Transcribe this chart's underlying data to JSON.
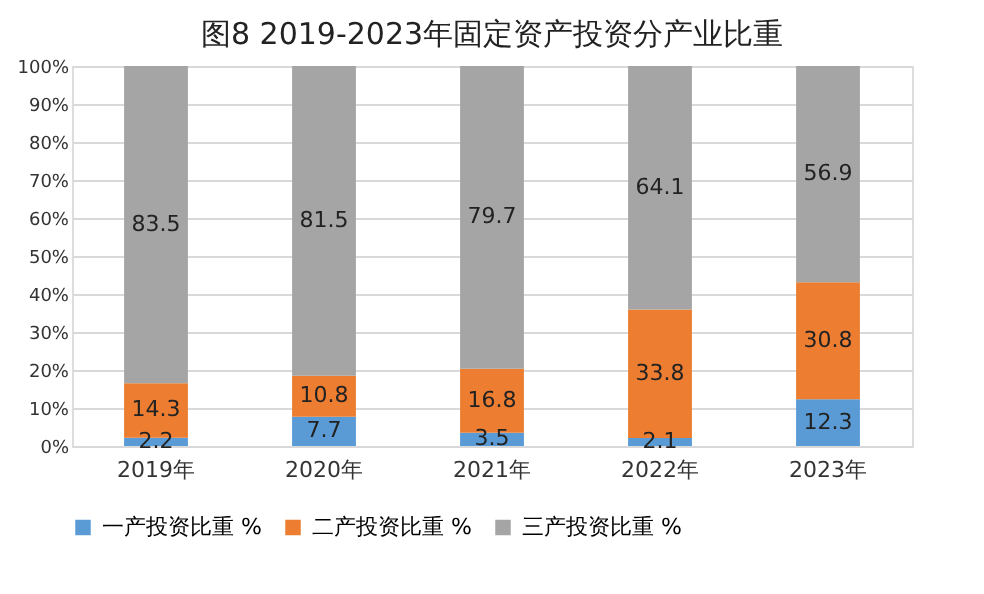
{
  "chart_data": {
    "type": "bar",
    "title": "图8   2019-2023年固定资产投资分产业比重",
    "categories": [
      "2019年",
      "2020年",
      "2021年",
      "2022年",
      "2023年"
    ],
    "stacked": true,
    "series": [
      {
        "name": "一产投资比重 %",
        "color": "#5b9bd5",
        "values": [
          2.2,
          7.7,
          3.5,
          2.1,
          12.3
        ]
      },
      {
        "name": "二产投资比重 %",
        "color": "#ed7d31",
        "values": [
          14.3,
          10.8,
          16.8,
          33.8,
          30.8
        ]
      },
      {
        "name": "三产投资比重 %",
        "color": "#a5a5a5",
        "values": [
          83.5,
          81.5,
          79.7,
          64.1,
          56.9
        ]
      }
    ],
    "ylim": [
      0,
      100
    ],
    "yticks": [
      {
        "value": 0,
        "label": "0%"
      },
      {
        "value": 10,
        "label": "10%"
      },
      {
        "value": 20,
        "label": "20%"
      },
      {
        "value": 30,
        "label": "30%"
      },
      {
        "value": 40,
        "label": "40%"
      },
      {
        "value": 50,
        "label": "50%"
      },
      {
        "value": 60,
        "label": "60%"
      },
      {
        "value": 70,
        "label": "70%"
      },
      {
        "value": 80,
        "label": "80%"
      },
      {
        "value": 90,
        "label": "90%"
      },
      {
        "value": 100,
        "label": "100%"
      }
    ],
    "grid": "y",
    "legend": "bottom",
    "data_labels": true
  }
}
